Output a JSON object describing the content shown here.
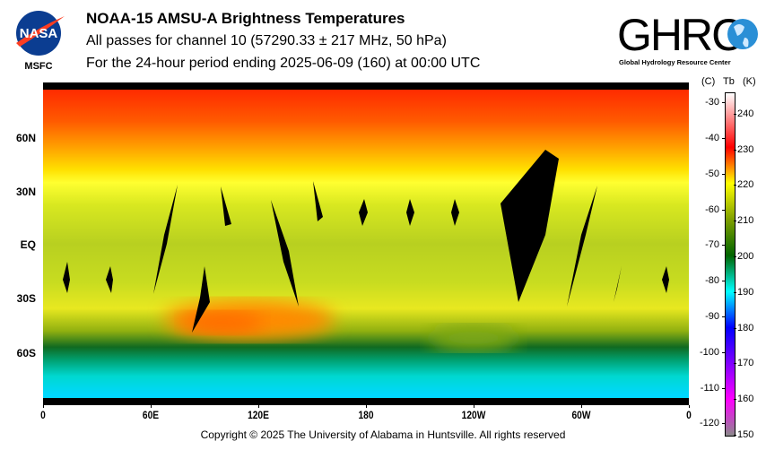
{
  "header": {
    "title": "NOAA-15 AMSU-A Brightness Temperatures",
    "subtitle": "All passes for channel 10 (57290.33 ± 217 MHz, 50 hPa)",
    "period": "For the 24-hour period ending 2025-06-09 (160) at 00:00 UTC",
    "left_logo": {
      "text": "NASA",
      "caption": "MSFC"
    },
    "right_logo": {
      "text": "GHRC",
      "caption": "Global Hydrology Resource Center"
    }
  },
  "chart_data": {
    "type": "heatmap",
    "title": "NOAA-15 AMSU-A Brightness Temperatures",
    "x_ticks": [
      "0",
      "60E",
      "120E",
      "180",
      "120W",
      "60W",
      "0"
    ],
    "y_ticks": [
      "60N",
      "30N",
      "EQ",
      "30S",
      "60S"
    ],
    "colorbar": {
      "title_c": "(C)",
      "title_tb": "Tb",
      "title_k": "(K)",
      "celsius_ticks": [
        "-30",
        "-40",
        "-50",
        "-60",
        "-70",
        "-80",
        "-90",
        "-100",
        "-110",
        "-120"
      ],
      "kelvin_ticks": [
        "240",
        "230",
        "220",
        "210",
        "200",
        "190",
        "180",
        "170",
        "160",
        "150"
      ],
      "range_k": [
        150,
        245
      ],
      "colors": [
        "#8a8a8a",
        "#ff00ff",
        "#8000ff",
        "#0000ff",
        "#00ffff",
        "#006400",
        "#80a000",
        "#ffff00",
        "#ff8000",
        "#ff0000",
        "#ffffff"
      ]
    },
    "zonal_profile_k": [
      {
        "lat": 85,
        "tb": 232
      },
      {
        "lat": 60,
        "tb": 228
      },
      {
        "lat": 45,
        "tb": 223
      },
      {
        "lat": 35,
        "tb": 219
      },
      {
        "lat": 20,
        "tb": 216
      },
      {
        "lat": 0,
        "tb": 213
      },
      {
        "lat": -30,
        "tb": 216
      },
      {
        "lat": -40,
        "tb": 220
      },
      {
        "lat": -55,
        "tb": 206
      },
      {
        "lat": -62,
        "tb": 200
      },
      {
        "lat": -70,
        "tb": 193
      },
      {
        "lat": -85,
        "tb": 190
      }
    ]
  },
  "footer": {
    "copyright": "Copyright © 2025 The University of Alabama in Huntsville.  All rights reserved"
  }
}
